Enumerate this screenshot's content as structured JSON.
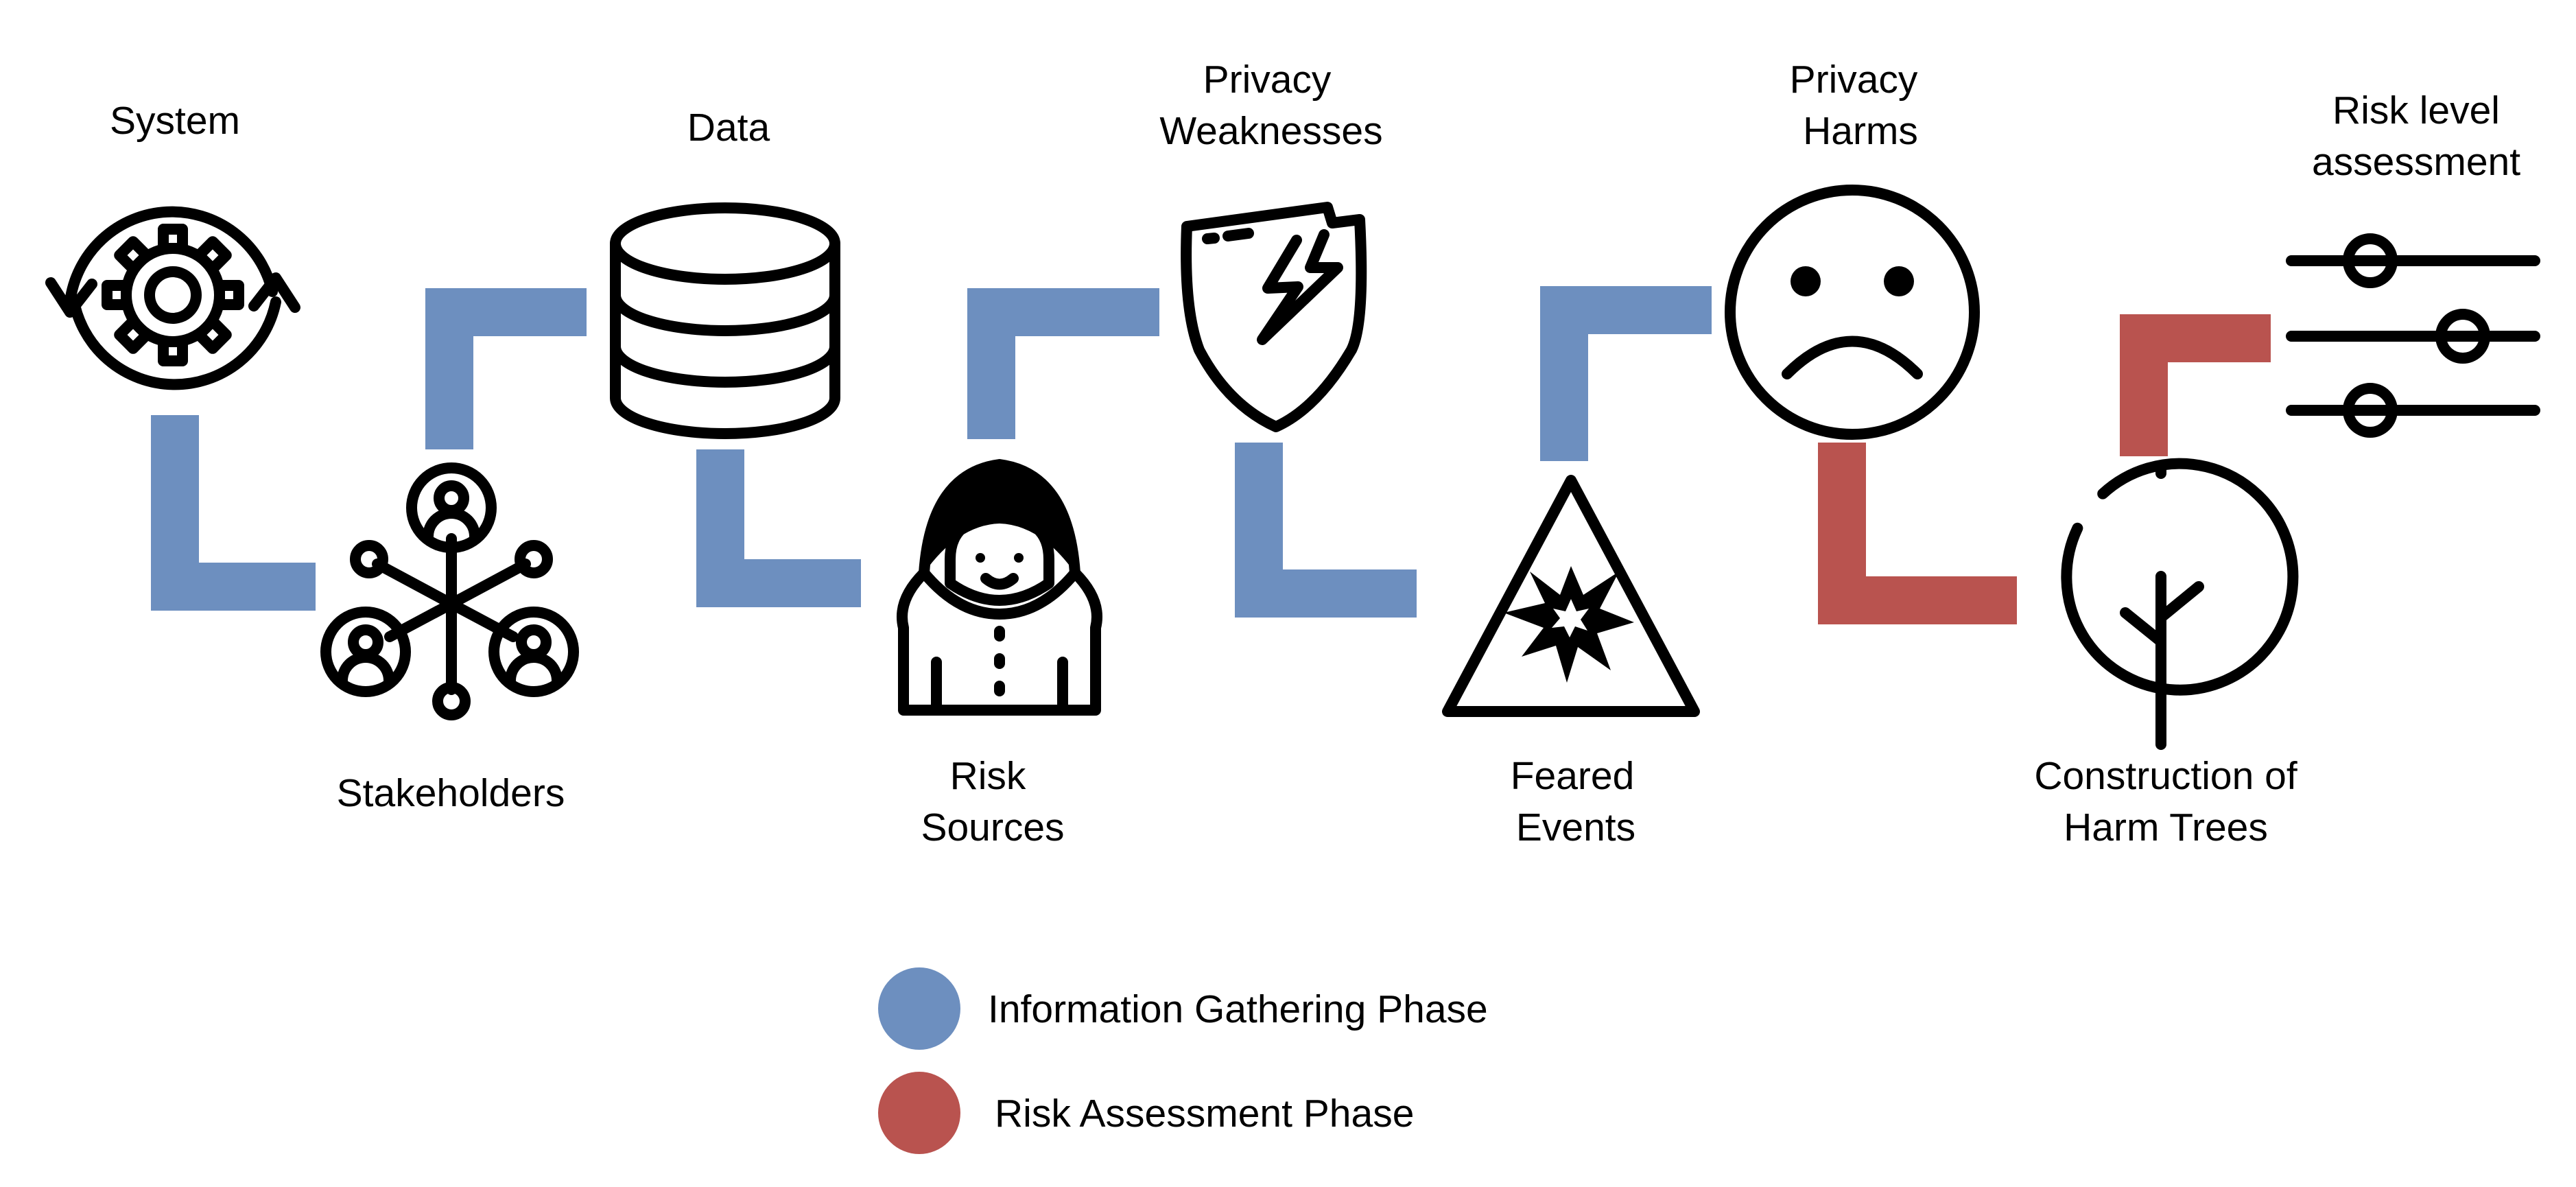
{
  "colors": {
    "information_gathering": "#6d8fbf",
    "risk_assessment": "#b9534f",
    "icon": "#000000"
  },
  "steps": {
    "system": {
      "label": "System",
      "icon": "gear-cycle-icon"
    },
    "stakeholders": {
      "label": "Stakeholders",
      "icon": "people-network-icon"
    },
    "data": {
      "label": "Data",
      "icon": "database-icon"
    },
    "risk_sources": {
      "label_line1": "Risk",
      "label_line2": "Sources",
      "icon": "hooded-hacker-icon"
    },
    "privacy_weaknesses": {
      "label_line1": "Privacy",
      "label_line2": "Weaknesses",
      "icon": "broken-shield-icon"
    },
    "feared_events": {
      "label_line1": "Feared",
      "label_line2": "Events",
      "icon": "warning-triangle-icon"
    },
    "privacy_harms": {
      "label_line1": "Privacy",
      "label_line2": "Harms",
      "icon": "sad-face-icon"
    },
    "harm_trees": {
      "label_line1": "Construction of",
      "label_line2": "Harm Trees",
      "icon": "tree-icon"
    },
    "risk_level": {
      "label_line1": "Risk level",
      "label_line2": "assessment",
      "icon": "sliders-icon"
    }
  },
  "legend": {
    "information_gathering": "Information Gathering Phase",
    "risk_assessment": "Risk Assessment Phase"
  }
}
